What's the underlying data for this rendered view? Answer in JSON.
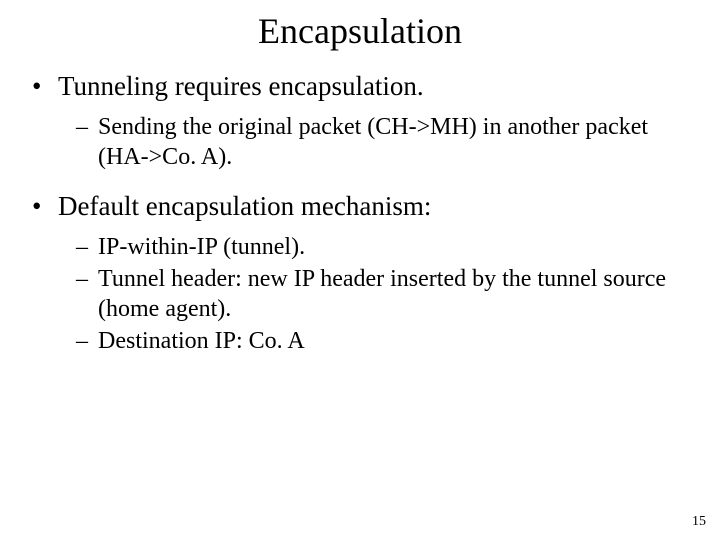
{
  "slide": {
    "title": "Encapsulation",
    "bullets": [
      {
        "level": 1,
        "marker": "•",
        "text": "Tunneling requires encapsulation."
      },
      {
        "level": 2,
        "marker": "–",
        "text": "Sending the original packet (CH->MH) in another packet (HA->Co. A)."
      },
      {
        "level": 1,
        "marker": "•",
        "text": "Default encapsulation mechanism:"
      },
      {
        "level": 2,
        "marker": "–",
        "text": "IP-within-IP (tunnel)."
      },
      {
        "level": 2,
        "marker": "–",
        "text": "Tunnel header: new IP header inserted by the tunnel source (home agent)."
      },
      {
        "level": 2,
        "marker": "–",
        "text": "Destination IP: Co. A"
      }
    ],
    "page_number": "15",
    "colors": {
      "background": "#ffffff",
      "text": "#000000"
    },
    "typography": {
      "font_family": "Times New Roman",
      "title_fontsize": 36,
      "l1_fontsize": 27,
      "l2_fontsize": 24,
      "page_number_fontsize": 14
    }
  }
}
